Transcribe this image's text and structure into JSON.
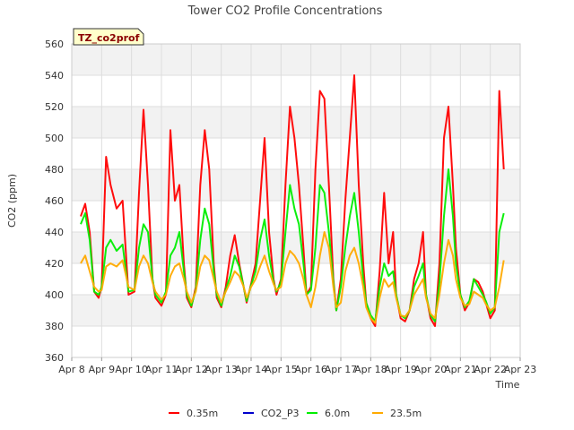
{
  "chart_data": {
    "type": "line",
    "title": "Tower CO2 Profile Concentrations",
    "xlabel": "Time",
    "ylabel": "CO2 (ppm)",
    "site_badge": "TZ_co2prof",
    "xlim": [
      8,
      23
    ],
    "ylim": [
      360,
      560
    ],
    "x_ticks": [
      8,
      9,
      10,
      11,
      12,
      13,
      14,
      15,
      16,
      17,
      18,
      19,
      20,
      21,
      22,
      23
    ],
    "x_tick_labels": [
      "Apr 8",
      "Apr 9",
      "Apr 10",
      "Apr 11",
      "Apr 12",
      "Apr 13",
      "Apr 14",
      "Apr 15",
      "Apr 16",
      "Apr 17",
      "Apr 18",
      "Apr 19",
      "Apr 20",
      "Apr 21",
      "Apr 22",
      "Apr 23"
    ],
    "y_ticks": [
      360,
      380,
      400,
      420,
      440,
      460,
      480,
      500,
      520,
      540,
      560
    ],
    "y_tick_labels": [
      "360",
      "380",
      "400",
      "420",
      "440",
      "460",
      "480",
      "500",
      "520",
      "540",
      "560"
    ],
    "grid": true,
    "legend_position": "bottom",
    "series": [
      {
        "name": "0.35m",
        "color": "#ff0000",
        "x": [
          8.3,
          8.45,
          8.6,
          8.75,
          8.9,
          9.0,
          9.15,
          9.3,
          9.5,
          9.7,
          9.9,
          10.1,
          10.25,
          10.4,
          10.55,
          10.7,
          10.8,
          11.0,
          11.15,
          11.3,
          11.45,
          11.6,
          11.75,
          11.85,
          12.0,
          12.15,
          12.3,
          12.45,
          12.6,
          12.75,
          12.85,
          13.0,
          13.15,
          13.3,
          13.45,
          13.6,
          13.75,
          13.85,
          14.0,
          14.15,
          14.3,
          14.45,
          14.6,
          14.75,
          14.85,
          15.0,
          15.15,
          15.3,
          15.45,
          15.6,
          15.75,
          15.85,
          16.0,
          16.15,
          16.3,
          16.45,
          16.6,
          16.75,
          16.85,
          17.0,
          17.15,
          17.3,
          17.45,
          17.6,
          17.75,
          17.85,
          18.0,
          18.15,
          18.3,
          18.45,
          18.6,
          18.75,
          18.85,
          19.0,
          19.15,
          19.3,
          19.45,
          19.6,
          19.75,
          19.85,
          20.0,
          20.15,
          20.3,
          20.45,
          20.6,
          20.75,
          20.85,
          21.0,
          21.15,
          21.3,
          21.45,
          21.6,
          21.75,
          21.85,
          22.0,
          22.15,
          22.3,
          22.45
        ],
        "values": [
          450,
          458,
          440,
          402,
          398,
          405,
          488,
          470,
          455,
          460,
          400,
          402,
          465,
          518,
          470,
          410,
          398,
          393,
          400,
          505,
          460,
          470,
          420,
          398,
          392,
          405,
          470,
          505,
          480,
          420,
          398,
          392,
          405,
          425,
          438,
          420,
          405,
          395,
          407,
          420,
          460,
          500,
          440,
          410,
          400,
          410,
          470,
          520,
          500,
          470,
          430,
          400,
          405,
          480,
          530,
          525,
          470,
          410,
          390,
          410,
          460,
          500,
          540,
          470,
          420,
          395,
          385,
          380,
          415,
          465,
          420,
          440,
          400,
          385,
          383,
          390,
          410,
          420,
          440,
          400,
          385,
          380,
          420,
          500,
          520,
          470,
          430,
          400,
          390,
          395,
          410,
          408,
          402,
          395,
          385,
          390,
          530,
          480
        ]
      },
      {
        "name": "CO2_P3",
        "color": "#0000cc",
        "x": [],
        "values": []
      },
      {
        "name": "6.0m",
        "color": "#00ee00",
        "x": [
          8.3,
          8.45,
          8.6,
          8.75,
          8.9,
          9.0,
          9.15,
          9.3,
          9.5,
          9.7,
          9.9,
          10.1,
          10.25,
          10.4,
          10.55,
          10.7,
          10.8,
          11.0,
          11.15,
          11.3,
          11.45,
          11.6,
          11.75,
          11.85,
          12.0,
          12.15,
          12.3,
          12.45,
          12.6,
          12.75,
          12.85,
          13.0,
          13.15,
          13.3,
          13.45,
          13.6,
          13.75,
          13.85,
          14.0,
          14.15,
          14.3,
          14.45,
          14.6,
          14.75,
          14.85,
          15.0,
          15.15,
          15.3,
          15.45,
          15.6,
          15.75,
          15.85,
          16.0,
          16.15,
          16.3,
          16.45,
          16.6,
          16.75,
          16.85,
          17.0,
          17.15,
          17.3,
          17.45,
          17.6,
          17.75,
          17.85,
          18.0,
          18.15,
          18.3,
          18.45,
          18.6,
          18.75,
          18.85,
          19.0,
          19.15,
          19.3,
          19.45,
          19.6,
          19.75,
          19.85,
          20.0,
          20.15,
          20.3,
          20.45,
          20.6,
          20.75,
          20.85,
          21.0,
          21.15,
          21.3,
          21.45,
          21.6,
          21.75,
          21.85,
          22.0,
          22.15,
          22.3,
          22.45
        ],
        "values": [
          445,
          452,
          435,
          402,
          400,
          405,
          430,
          435,
          428,
          432,
          402,
          403,
          430,
          445,
          440,
          410,
          400,
          395,
          402,
          425,
          430,
          440,
          415,
          400,
          393,
          403,
          435,
          455,
          445,
          415,
          400,
          393,
          403,
          412,
          425,
          418,
          405,
          396,
          406,
          415,
          435,
          448,
          425,
          408,
          402,
          408,
          440,
          470,
          455,
          445,
          420,
          400,
          403,
          430,
          470,
          465,
          440,
          408,
          390,
          405,
          430,
          450,
          465,
          440,
          410,
          395,
          387,
          383,
          405,
          420,
          412,
          415,
          400,
          387,
          385,
          390,
          405,
          412,
          420,
          400,
          387,
          383,
          408,
          450,
          480,
          450,
          420,
          400,
          392,
          396,
          410,
          405,
          400,
          396,
          388,
          392,
          440,
          452
        ]
      },
      {
        "name": "23.5m",
        "color": "#ffaa00",
        "x": [
          8.3,
          8.45,
          8.6,
          8.75,
          8.9,
          9.0,
          9.15,
          9.3,
          9.5,
          9.7,
          9.9,
          10.1,
          10.25,
          10.4,
          10.55,
          10.7,
          10.8,
          11.0,
          11.15,
          11.3,
          11.45,
          11.6,
          11.75,
          11.85,
          12.0,
          12.15,
          12.3,
          12.45,
          12.6,
          12.75,
          12.85,
          13.0,
          13.15,
          13.3,
          13.45,
          13.6,
          13.75,
          13.85,
          14.0,
          14.15,
          14.3,
          14.45,
          14.6,
          14.75,
          14.85,
          15.0,
          15.15,
          15.3,
          15.45,
          15.6,
          15.75,
          15.85,
          16.0,
          16.15,
          16.3,
          16.45,
          16.6,
          16.75,
          16.85,
          17.0,
          17.15,
          17.3,
          17.45,
          17.6,
          17.75,
          17.85,
          18.0,
          18.15,
          18.3,
          18.45,
          18.6,
          18.75,
          18.85,
          19.0,
          19.15,
          19.3,
          19.45,
          19.6,
          19.75,
          19.85,
          20.0,
          20.15,
          20.3,
          20.45,
          20.6,
          20.75,
          20.85,
          21.0,
          21.15,
          21.3,
          21.45,
          21.6,
          21.75,
          21.85,
          22.0,
          22.15,
          22.3,
          22.45
        ],
        "values": [
          420,
          425,
          415,
          405,
          402,
          403,
          418,
          420,
          418,
          422,
          405,
          403,
          418,
          425,
          420,
          408,
          402,
          397,
          400,
          412,
          418,
          420,
          410,
          402,
          395,
          402,
          418,
          425,
          422,
          410,
          402,
          395,
          402,
          408,
          415,
          412,
          405,
          398,
          405,
          410,
          418,
          425,
          415,
          407,
          403,
          405,
          420,
          428,
          425,
          420,
          410,
          400,
          392,
          405,
          425,
          440,
          430,
          405,
          392,
          395,
          415,
          425,
          430,
          420,
          405,
          392,
          385,
          382,
          398,
          410,
          405,
          408,
          398,
          387,
          386,
          390,
          400,
          405,
          410,
          398,
          388,
          385,
          400,
          420,
          435,
          425,
          410,
          398,
          393,
          394,
          402,
          400,
          398,
          394,
          390,
          392,
          405,
          422
        ]
      }
    ]
  }
}
